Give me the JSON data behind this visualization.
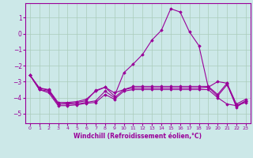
{
  "xlabel": "Windchill (Refroidissement éolien,°C)",
  "xlim": [
    -0.5,
    23.5
  ],
  "ylim": [
    -5.6,
    1.9
  ],
  "yticks": [
    1,
    0,
    -1,
    -2,
    -3,
    -4,
    -5
  ],
  "xticks": [
    0,
    1,
    2,
    3,
    4,
    5,
    6,
    7,
    8,
    9,
    10,
    11,
    12,
    13,
    14,
    15,
    16,
    17,
    18,
    19,
    20,
    21,
    22,
    23
  ],
  "bg_color": "#cce8e8",
  "grid_color": "#aaccbb",
  "line_color": "#990099",
  "lines": [
    [
      [
        0,
        -2.6
      ],
      [
        1,
        -3.5
      ],
      [
        2,
        -3.6
      ],
      [
        3,
        -4.4
      ],
      [
        4,
        -4.4
      ],
      [
        5,
        -4.4
      ],
      [
        6,
        -4.3
      ],
      [
        7,
        -4.2
      ],
      [
        8,
        -3.6
      ],
      [
        9,
        -4.0
      ],
      [
        10,
        -3.5
      ],
      [
        11,
        -3.4
      ],
      [
        12,
        -3.4
      ],
      [
        13,
        -3.4
      ],
      [
        14,
        -3.4
      ],
      [
        15,
        -3.4
      ],
      [
        16,
        -3.4
      ],
      [
        17,
        -3.4
      ],
      [
        18,
        -3.4
      ],
      [
        19,
        -3.35
      ],
      [
        20,
        -3.9
      ],
      [
        21,
        -3.2
      ],
      [
        22,
        -4.5
      ],
      [
        23,
        -4.2
      ]
    ],
    [
      [
        0,
        -2.6
      ],
      [
        1,
        -3.5
      ],
      [
        2,
        -3.7
      ],
      [
        3,
        -4.5
      ],
      [
        4,
        -4.5
      ],
      [
        5,
        -4.45
      ],
      [
        6,
        -4.35
      ],
      [
        7,
        -4.3
      ],
      [
        8,
        -3.8
      ],
      [
        9,
        -4.1
      ],
      [
        10,
        -3.6
      ],
      [
        11,
        -3.5
      ],
      [
        12,
        -3.5
      ],
      [
        13,
        -3.5
      ],
      [
        14,
        -3.5
      ],
      [
        15,
        -3.5
      ],
      [
        16,
        -3.5
      ],
      [
        17,
        -3.5
      ],
      [
        18,
        -3.5
      ],
      [
        19,
        -3.5
      ],
      [
        20,
        -4.0
      ],
      [
        21,
        -4.4
      ],
      [
        22,
        -4.5
      ],
      [
        23,
        -4.3
      ]
    ],
    [
      [
        0,
        -2.6
      ],
      [
        1,
        -3.4
      ],
      [
        2,
        -3.55
      ],
      [
        3,
        -4.4
      ],
      [
        4,
        -4.35
      ],
      [
        5,
        -4.3
      ],
      [
        6,
        -4.2
      ],
      [
        7,
        -3.55
      ],
      [
        8,
        -3.35
      ],
      [
        9,
        -3.7
      ],
      [
        10,
        -3.5
      ],
      [
        11,
        -3.3
      ],
      [
        12,
        -3.3
      ],
      [
        13,
        -3.3
      ],
      [
        14,
        -3.3
      ],
      [
        15,
        -3.3
      ],
      [
        16,
        -3.3
      ],
      [
        17,
        -3.3
      ],
      [
        18,
        -3.3
      ],
      [
        19,
        -3.3
      ],
      [
        20,
        -3.8
      ],
      [
        21,
        -3.1
      ],
      [
        22,
        -4.4
      ],
      [
        23,
        -4.1
      ]
    ],
    [
      [
        0,
        -2.6
      ],
      [
        1,
        -3.4
      ],
      [
        2,
        -3.5
      ],
      [
        3,
        -4.3
      ],
      [
        4,
        -4.3
      ],
      [
        5,
        -4.25
      ],
      [
        6,
        -4.1
      ],
      [
        7,
        -3.6
      ],
      [
        8,
        -3.35
      ],
      [
        9,
        -3.9
      ],
      [
        10,
        -2.45
      ],
      [
        11,
        -1.9
      ],
      [
        12,
        -1.3
      ],
      [
        13,
        -0.4
      ],
      [
        14,
        0.2
      ],
      [
        15,
        1.55
      ],
      [
        16,
        1.35
      ],
      [
        17,
        0.1
      ],
      [
        18,
        -0.75
      ],
      [
        19,
        -3.35
      ],
      [
        20,
        -3.0
      ],
      [
        21,
        -3.1
      ],
      [
        22,
        -4.6
      ],
      [
        23,
        -4.2
      ]
    ]
  ]
}
